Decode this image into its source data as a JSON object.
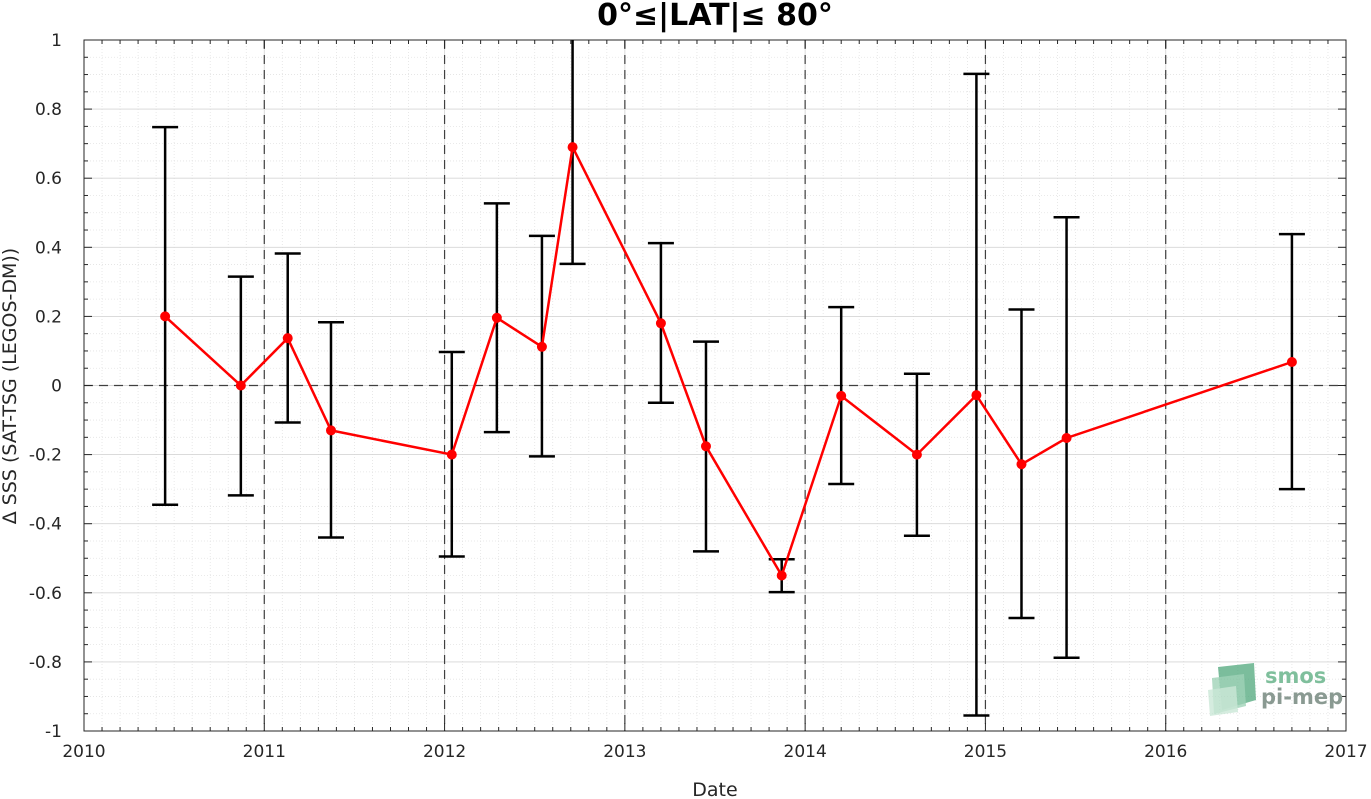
{
  "chart_data": {
    "type": "line",
    "title": "0°≤|LAT|≤ 80°",
    "xlabel": "Date",
    "ylabel": "Δ SSS (SAT-TSG (LEGOS-DM))",
    "xlim": [
      2010,
      2017
    ],
    "ylim": [
      -1,
      1
    ],
    "xticks": [
      "2010",
      "2011",
      "2012",
      "2013",
      "2014",
      "2015",
      "2016",
      "2017"
    ],
    "yticks": [
      "-1",
      "-0.8",
      "-0.6",
      "-0.4",
      "-0.2",
      "0",
      "0.2",
      "0.4",
      "0.6",
      "0.8",
      "1"
    ],
    "grid": true,
    "series": [
      {
        "type": "line-errorbar",
        "color": "#ff0000",
        "errorbar_color": "#000000",
        "points": [
          {
            "x": 2010.45,
            "y": 0.2,
            "lower": -0.345,
            "upper": 0.748
          },
          {
            "x": 2010.87,
            "y": 0.0,
            "lower": -0.318,
            "upper": 0.315
          },
          {
            "x": 2011.13,
            "y": 0.137,
            "lower": -0.107,
            "upper": 0.382
          },
          {
            "x": 2011.37,
            "y": -0.13,
            "lower": -0.44,
            "upper": 0.183
          },
          {
            "x": 2012.04,
            "y": -0.2,
            "lower": -0.495,
            "upper": 0.097
          },
          {
            "x": 2012.29,
            "y": 0.196,
            "lower": -0.135,
            "upper": 0.527
          },
          {
            "x": 2012.54,
            "y": 0.112,
            "lower": -0.205,
            "upper": 0.433
          },
          {
            "x": 2012.71,
            "y": 0.69,
            "lower": 0.352,
            "upper": 1.05
          },
          {
            "x": 2013.2,
            "y": 0.18,
            "lower": -0.05,
            "upper": 0.412
          },
          {
            "x": 2013.45,
            "y": -0.176,
            "lower": -0.48,
            "upper": 0.127
          },
          {
            "x": 2013.87,
            "y": -0.55,
            "lower": -0.598,
            "upper": -0.503
          },
          {
            "x": 2014.2,
            "y": -0.03,
            "lower": -0.285,
            "upper": 0.227
          },
          {
            "x": 2014.62,
            "y": -0.2,
            "lower": -0.435,
            "upper": 0.034
          },
          {
            "x": 2014.95,
            "y": -0.028,
            "lower": -0.955,
            "upper": 0.902
          },
          {
            "x": 2015.2,
            "y": -0.228,
            "lower": -0.673,
            "upper": 0.22
          },
          {
            "x": 2015.45,
            "y": -0.152,
            "lower": -0.788,
            "upper": 0.487
          },
          {
            "x": 2016.7,
            "y": 0.068,
            "lower": -0.3,
            "upper": 0.438
          }
        ]
      }
    ],
    "reference_lines": {
      "horizontal": [
        0
      ],
      "vertical": [
        2011,
        2012,
        2013,
        2014,
        2015,
        2016
      ]
    }
  },
  "logo": {
    "line1": "smos",
    "line2": "pi-mep",
    "color": "#7fbf9c"
  }
}
